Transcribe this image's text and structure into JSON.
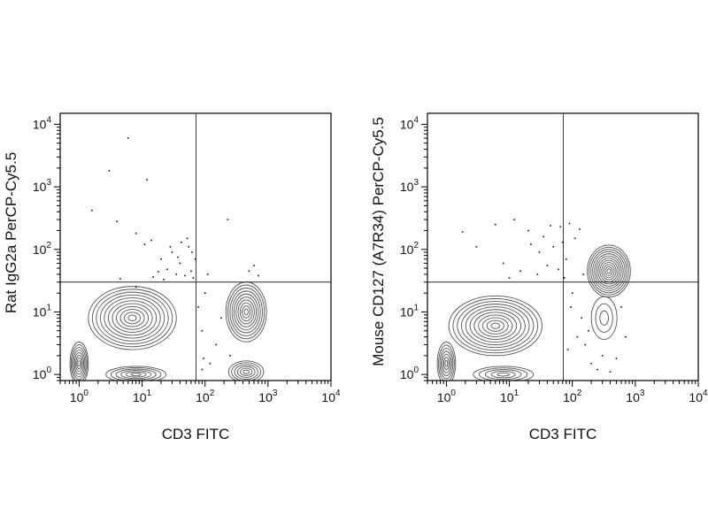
{
  "figure": {
    "panels": [
      {
        "xlabel": "CD3 FITC",
        "ylabel": "Rat IgG2a PerCP-Cy5.5"
      },
      {
        "xlabel": "CD3 FITC",
        "ylabel": "Mouse CD127 (A7R34) PerCP-Cy5.5"
      }
    ]
  },
  "chart_data": [
    {
      "type": "contour",
      "title": "",
      "xlabel": "CD3 FITC",
      "ylabel": "Rat IgG2a PerCP-Cy5.5",
      "xscale": "log",
      "yscale": "log",
      "xlim": [
        0.5,
        10000
      ],
      "ylim": [
        0.8,
        15000
      ],
      "xticks": [
        {
          "base": "10",
          "exp": "0",
          "value": 1
        },
        {
          "base": "10",
          "exp": "1",
          "value": 10
        },
        {
          "base": "10",
          "exp": "2",
          "value": 100
        },
        {
          "base": "10",
          "exp": "3",
          "value": 1000
        },
        {
          "base": "10",
          "exp": "4",
          "value": 10000
        }
      ],
      "yticks": [
        {
          "base": "10",
          "exp": "0",
          "value": 1
        },
        {
          "base": "10",
          "exp": "1",
          "value": 10
        },
        {
          "base": "10",
          "exp": "2",
          "value": 100
        },
        {
          "base": "10",
          "exp": "3",
          "value": 1000
        },
        {
          "base": "10",
          "exp": "4",
          "value": 10000
        }
      ],
      "quadrant_gate": {
        "x": 72,
        "y": 30
      },
      "populations": [
        {
          "name": "",
          "center": [
            1,
            1.5
          ],
          "spread": [
            1.4,
            2.2
          ],
          "levels": 8
        },
        {
          "name": "",
          "center": [
            7,
            8
          ],
          "spread": [
            5.0,
            3.2
          ],
          "levels": 11
        },
        {
          "name": "",
          "center": [
            8,
            1
          ],
          "spread": [
            3.0,
            1.35
          ],
          "levels": 6
        },
        {
          "name": "",
          "center": [
            450,
            10
          ],
          "spread": [
            2.1,
            3.0
          ],
          "levels": 10
        },
        {
          "name": "",
          "center": [
            450,
            1.1
          ],
          "spread": [
            1.9,
            1.5
          ],
          "levels": 6
        }
      ],
      "scatter_events": [
        [
          6,
          6000
        ],
        [
          3,
          1800
        ],
        [
          12,
          1300
        ],
        [
          1.6,
          420
        ],
        [
          4,
          280
        ],
        [
          8,
          180
        ],
        [
          11,
          120
        ],
        [
          14,
          140
        ],
        [
          20,
          70
        ],
        [
          30,
          90
        ],
        [
          40,
          60
        ],
        [
          55,
          110
        ],
        [
          60,
          45
        ],
        [
          25,
          48
        ],
        [
          35,
          40
        ],
        [
          18,
          44
        ],
        [
          48,
          38
        ],
        [
          65,
          35
        ],
        [
          230,
          300
        ],
        [
          70,
          70
        ],
        [
          90,
          5
        ],
        [
          100,
          20
        ],
        [
          150,
          3
        ],
        [
          120,
          1.5
        ],
        [
          90,
          1.2
        ],
        [
          600,
          55
        ],
        [
          500,
          45
        ],
        [
          700,
          38
        ],
        [
          250,
          2
        ],
        [
          180,
          8
        ],
        [
          110,
          40
        ],
        [
          28,
          110
        ],
        [
          52,
          150
        ],
        [
          8,
          25
        ],
        [
          22,
          33
        ],
        [
          15,
          36
        ],
        [
          42,
          130
        ],
        [
          4.5,
          34
        ],
        [
          37,
          75
        ],
        [
          62,
          90
        ],
        [
          78,
          12
        ],
        [
          95,
          1.8
        ]
      ]
    },
    {
      "type": "contour",
      "title": "",
      "xlabel": "CD3 FITC",
      "ylabel": "Mouse CD127 (A7R34) PerCP-Cy5.5",
      "xscale": "log",
      "yscale": "log",
      "xlim": [
        0.5,
        10000
      ],
      "ylim": [
        0.8,
        15000
      ],
      "xticks": [
        {
          "base": "10",
          "exp": "0",
          "value": 1
        },
        {
          "base": "10",
          "exp": "1",
          "value": 10
        },
        {
          "base": "10",
          "exp": "2",
          "value": 100
        },
        {
          "base": "10",
          "exp": "3",
          "value": 1000
        },
        {
          "base": "10",
          "exp": "4",
          "value": 10000
        }
      ],
      "yticks": [
        {
          "base": "10",
          "exp": "0",
          "value": 1
        },
        {
          "base": "10",
          "exp": "1",
          "value": 10
        },
        {
          "base": "10",
          "exp": "2",
          "value": 100
        },
        {
          "base": "10",
          "exp": "3",
          "value": 1000
        },
        {
          "base": "10",
          "exp": "4",
          "value": 10000
        }
      ],
      "quadrant_gate": {
        "x": 72,
        "y": 30
      },
      "populations": [
        {
          "name": "",
          "center": [
            1,
            1.5
          ],
          "spread": [
            1.4,
            2.2
          ],
          "levels": 7
        },
        {
          "name": "",
          "center": [
            6,
            6
          ],
          "spread": [
            5.5,
            3.0
          ],
          "levels": 11
        },
        {
          "name": "",
          "center": [
            8,
            1
          ],
          "spread": [
            3.0,
            1.35
          ],
          "levels": 5
        },
        {
          "name": "",
          "center": [
            380,
            45
          ],
          "spread": [
            2.2,
            2.6
          ],
          "levels": 12
        },
        {
          "name": "",
          "center": [
            320,
            8
          ],
          "spread": [
            1.6,
            2.2
          ],
          "levels": 3
        }
      ],
      "scatter_events": [
        [
          1.8,
          190
        ],
        [
          6,
          250
        ],
        [
          12,
          300
        ],
        [
          20,
          200
        ],
        [
          35,
          160
        ],
        [
          50,
          110
        ],
        [
          65,
          230
        ],
        [
          90,
          260
        ],
        [
          130,
          210
        ],
        [
          110,
          150
        ],
        [
          40,
          55
        ],
        [
          28,
          40
        ],
        [
          15,
          45
        ],
        [
          60,
          48
        ],
        [
          75,
          35
        ],
        [
          100,
          20
        ],
        [
          140,
          8
        ],
        [
          160,
          3
        ],
        [
          200,
          1.5
        ],
        [
          250,
          1.2
        ],
        [
          300,
          2
        ],
        [
          400,
          1.1
        ],
        [
          500,
          1.8
        ],
        [
          700,
          4
        ],
        [
          600,
          12
        ],
        [
          80,
          70
        ],
        [
          95,
          12
        ],
        [
          30,
          90
        ],
        [
          22,
          120
        ],
        [
          8,
          60
        ],
        [
          45,
          240
        ],
        [
          70,
          130
        ],
        [
          150,
          40
        ],
        [
          10,
          35
        ],
        [
          3,
          110
        ],
        [
          120,
          4
        ],
        [
          180,
          5
        ],
        [
          85,
          2.5
        ]
      ]
    }
  ]
}
